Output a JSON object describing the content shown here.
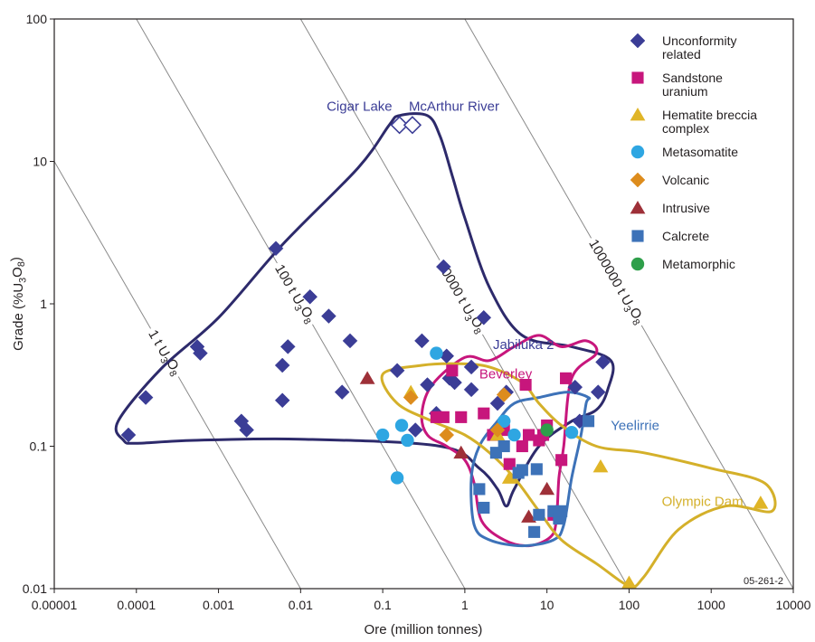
{
  "chart_data": {
    "type": "scatter",
    "xlabel": "Ore (million tonnes)",
    "ylabel": "Grade (%U3O8)",
    "ylabel_parts": {
      "pre": "Grade (%U",
      "sub1": "3",
      "mid": "O",
      "sub2": "8",
      "post": ")"
    },
    "xscale": "log",
    "yscale": "log",
    "xlim": [
      1e-05,
      10000
    ],
    "ylim": [
      0.01,
      100
    ],
    "x_ticks": [
      {
        "value": 1e-05,
        "label": "0.00001"
      },
      {
        "value": 0.0001,
        "label": "0.0001"
      },
      {
        "value": 0.001,
        "label": "0.001"
      },
      {
        "value": 0.01,
        "label": "0.01"
      },
      {
        "value": 0.1,
        "label": "0.1"
      },
      {
        "value": 1,
        "label": "1"
      },
      {
        "value": 10,
        "label": "10"
      },
      {
        "value": 100,
        "label": "100"
      },
      {
        "value": 1000,
        "label": "1000"
      },
      {
        "value": 10000,
        "label": "10000"
      }
    ],
    "y_ticks": [
      {
        "value": 0.01,
        "label": "0.01"
      },
      {
        "value": 0.1,
        "label": "0.1"
      },
      {
        "value": 1,
        "label": "1"
      },
      {
        "value": 10,
        "label": "10"
      },
      {
        "value": 100,
        "label": "100"
      }
    ],
    "grid": false,
    "legend_position": "top-right",
    "iso_lines": [
      {
        "tonnes": 1,
        "label_pre": "1 t U",
        "label_sub1": "3",
        "label_mid": "O",
        "label_sub2": "8",
        "label_at_x": 0.00022
      },
      {
        "tonnes": 100,
        "label_pre": "100 t U",
        "label_sub1": "3",
        "label_mid": "O",
        "label_sub2": "8",
        "label_at_x": 0.0085
      },
      {
        "tonnes": 10000,
        "label_pre": "10000 t U",
        "label_sub1": "3",
        "label_mid": "O",
        "label_sub2": "8",
        "label_at_x": 0.9
      },
      {
        "tonnes": 1000000,
        "label_pre": "1000000 t U",
        "label_sub1": "3",
        "label_mid": "O",
        "label_sub2": "8",
        "label_at_x": 70
      }
    ],
    "series": [
      {
        "name": "Unconformity related",
        "name_lines": [
          "Unconformity",
          "related"
        ],
        "marker": "diamond",
        "color": "#3b3d96",
        "points": [
          [
            8e-05,
            0.12
          ],
          [
            0.00013,
            0.22
          ],
          [
            0.00055,
            0.5
          ],
          [
            0.0006,
            0.45
          ],
          [
            0.0019,
            0.15
          ],
          [
            0.0022,
            0.13
          ],
          [
            0.005,
            2.45
          ],
          [
            0.006,
            0.37
          ],
          [
            0.006,
            0.21
          ],
          [
            0.007,
            0.5
          ],
          [
            0.013,
            1.12
          ],
          [
            0.022,
            0.82
          ],
          [
            0.032,
            0.24
          ],
          [
            0.04,
            0.55
          ],
          [
            0.15,
            0.34
          ],
          [
            0.25,
            0.13
          ],
          [
            0.3,
            0.55
          ],
          [
            0.35,
            0.27
          ],
          [
            0.45,
            0.17
          ],
          [
            0.55,
            1.82
          ],
          [
            0.6,
            0.43
          ],
          [
            0.65,
            0.3
          ],
          [
            0.75,
            0.28
          ],
          [
            1.2,
            0.25
          ],
          [
            1.2,
            0.36
          ],
          [
            1.7,
            0.8
          ],
          [
            2.5,
            0.2
          ],
          [
            3.2,
            0.24
          ],
          [
            22,
            0.26
          ],
          [
            25,
            0.15
          ],
          [
            42,
            0.24
          ],
          [
            48,
            0.39
          ]
        ]
      },
      {
        "name": "Sandstone uranium",
        "name_lines": [
          "Sandstone",
          "uranium"
        ],
        "marker": "square",
        "color": "#c7167c",
        "points": [
          [
            0.45,
            0.16
          ],
          [
            0.55,
            0.16
          ],
          [
            0.7,
            0.34
          ],
          [
            0.9,
            0.16
          ],
          [
            1.7,
            0.17
          ],
          [
            2.2,
            0.12
          ],
          [
            3,
            0.13
          ],
          [
            3.5,
            0.075
          ],
          [
            5,
            0.1
          ],
          [
            5.5,
            0.27
          ],
          [
            6,
            0.12
          ],
          [
            8,
            0.11
          ],
          [
            9,
            0.12
          ],
          [
            10,
            0.14
          ],
          [
            12,
            0.033
          ],
          [
            15,
            0.08
          ],
          [
            17,
            0.3
          ]
        ]
      },
      {
        "name": "Hematite breccia complex",
        "name_lines": [
          "Hematite breccia",
          "complex"
        ],
        "marker": "triangle",
        "color": "#e0b527",
        "points": [
          [
            0.22,
            0.24
          ],
          [
            2.5,
            0.12
          ],
          [
            3.5,
            0.06
          ],
          [
            45,
            0.072
          ],
          [
            100,
            0.011
          ],
          [
            4000,
            0.04
          ]
        ]
      },
      {
        "name": "Metasomatite",
        "name_lines": [
          "Metasomatite"
        ],
        "marker": "circle",
        "color": "#2ea6e2",
        "points": [
          [
            0.1,
            0.12
          ],
          [
            0.15,
            0.06
          ],
          [
            0.17,
            0.14
          ],
          [
            0.2,
            0.11
          ],
          [
            0.45,
            0.45
          ],
          [
            3,
            0.15
          ],
          [
            4,
            0.12
          ],
          [
            20,
            0.125
          ]
        ]
      },
      {
        "name": "Volcanic",
        "name_lines": [
          "Volcanic"
        ],
        "marker": "diamond",
        "color": "#dd8c1d",
        "points": [
          [
            0.22,
            0.22
          ],
          [
            0.6,
            0.12
          ],
          [
            2.5,
            0.13
          ],
          [
            3,
            0.23
          ]
        ]
      },
      {
        "name": "Intrusive",
        "name_lines": [
          "Intrusive"
        ],
        "marker": "triangle",
        "color": "#9e3038",
        "points": [
          [
            0.065,
            0.3
          ],
          [
            0.9,
            0.09
          ],
          [
            6,
            0.032
          ],
          [
            10,
            0.05
          ]
        ]
      },
      {
        "name": "Calcrete",
        "name_lines": [
          "Calcrete"
        ],
        "marker": "square",
        "color": "#3d72b8",
        "points": [
          [
            1.5,
            0.05
          ],
          [
            1.7,
            0.037
          ],
          [
            2.4,
            0.09
          ],
          [
            3,
            0.1
          ],
          [
            4.5,
            0.065
          ],
          [
            5,
            0.068
          ],
          [
            7,
            0.025
          ],
          [
            7.5,
            0.069
          ],
          [
            8,
            0.033
          ],
          [
            12,
            0.035
          ],
          [
            14,
            0.031
          ],
          [
            15,
            0.035
          ],
          [
            32,
            0.15
          ]
        ]
      },
      {
        "name": "Metamorphic",
        "name_lines": [
          "Metamorphic"
        ],
        "marker": "circle",
        "color": "#2e9f4a",
        "points": [
          [
            10,
            0.13
          ]
        ]
      }
    ],
    "highlighted": [
      {
        "name": "Cigar Lake",
        "x": 0.16,
        "y": 18,
        "marker": "diamond-open",
        "color": "#3b3d96"
      },
      {
        "name": "McArthur River",
        "x": 0.23,
        "y": 18,
        "marker": "diamond-open",
        "color": "#3b3d96"
      }
    ],
    "regions": [
      {
        "name": "Unconformity related field",
        "color": "#2d2a6b",
        "points": [
          [
            7e-05,
            0.11
          ],
          [
            6e-05,
            0.15
          ],
          [
            0.0002,
            0.35
          ],
          [
            0.001,
            0.8
          ],
          [
            0.006,
            2.6
          ],
          [
            0.05,
            9
          ],
          [
            0.12,
            18
          ],
          [
            0.16,
            21
          ],
          [
            0.35,
            21
          ],
          [
            0.5,
            15
          ],
          [
            0.7,
            8
          ],
          [
            1,
            4
          ],
          [
            2,
            1.3
          ],
          [
            5,
            0.6
          ],
          [
            20,
            0.5
          ],
          [
            60,
            0.4
          ],
          [
            55,
            0.25
          ],
          [
            40,
            0.18
          ],
          [
            20,
            0.15
          ],
          [
            8,
            0.1
          ],
          [
            4,
            0.05
          ],
          [
            3.2,
            0.038
          ],
          [
            2.5,
            0.05
          ],
          [
            1.5,
            0.07
          ],
          [
            0.5,
            0.1
          ],
          [
            0.01,
            0.112
          ],
          [
            0.0005,
            0.11
          ],
          [
            0.0001,
            0.105
          ]
        ]
      },
      {
        "name": "Jabiluka 2",
        "color": "#3b3d96",
        "label_x": 2.2,
        "label_y": 0.48,
        "no_shape": true
      },
      {
        "name": "Beverley",
        "color": "#c7167c",
        "label_x": 1.5,
        "label_y": 0.3,
        "points": [
          [
            0.4,
            0.27
          ],
          [
            0.3,
            0.17
          ],
          [
            0.35,
            0.12
          ],
          [
            0.6,
            0.1
          ],
          [
            1,
            0.08
          ],
          [
            1.3,
            0.055
          ],
          [
            1.6,
            0.03
          ],
          [
            3,
            0.022
          ],
          [
            6,
            0.02
          ],
          [
            11,
            0.023
          ],
          [
            13,
            0.03
          ],
          [
            14,
            0.06
          ],
          [
            16,
            0.1
          ],
          [
            20,
            0.3
          ],
          [
            40,
            0.45
          ],
          [
            30,
            0.55
          ],
          [
            15,
            0.5
          ],
          [
            8,
            0.6
          ],
          [
            4,
            0.5
          ],
          [
            2,
            0.4
          ],
          [
            1,
            0.42
          ]
        ]
      },
      {
        "name": "Yeelirrie",
        "color": "#3d72b8",
        "label_x": 60,
        "label_y": 0.13,
        "points": [
          [
            1.5,
            0.1
          ],
          [
            1.2,
            0.06
          ],
          [
            1.3,
            0.028
          ],
          [
            2,
            0.022
          ],
          [
            5,
            0.02
          ],
          [
            12,
            0.022
          ],
          [
            16,
            0.028
          ],
          [
            20,
            0.06
          ],
          [
            26,
            0.12
          ],
          [
            30,
            0.2
          ],
          [
            32,
            0.22
          ],
          [
            18,
            0.24
          ],
          [
            8,
            0.22
          ],
          [
            4,
            0.2
          ],
          [
            2.5,
            0.15
          ]
        ]
      },
      {
        "name": "Olympic Dam",
        "color": "#d4b02a",
        "label_x": 250,
        "label_y": 0.038,
        "points": [
          [
            0.1,
            0.32
          ],
          [
            0.15,
            0.2
          ],
          [
            0.4,
            0.15
          ],
          [
            1,
            0.12
          ],
          [
            2,
            0.09
          ],
          [
            4,
            0.06
          ],
          [
            8,
            0.035
          ],
          [
            15,
            0.022
          ],
          [
            40,
            0.015
          ],
          [
            100,
            0.0105
          ],
          [
            150,
            0.012
          ],
          [
            400,
            0.026
          ],
          [
            1500,
            0.038
          ],
          [
            5500,
            0.035
          ],
          [
            4500,
            0.055
          ],
          [
            1000,
            0.07
          ],
          [
            150,
            0.09
          ],
          [
            40,
            0.1
          ],
          [
            15,
            0.14
          ],
          [
            8,
            0.2
          ],
          [
            5,
            0.28
          ],
          [
            2,
            0.36
          ],
          [
            0.8,
            0.38
          ],
          [
            0.3,
            0.37
          ]
        ]
      }
    ],
    "figure_id": "05-261-2"
  }
}
